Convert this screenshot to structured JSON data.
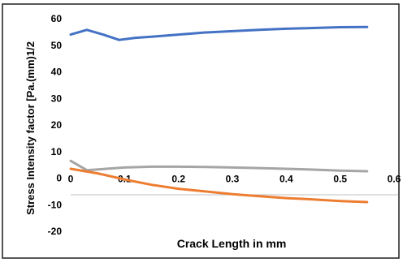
{
  "chart_data": {
    "type": "line",
    "xlabel": "Crack Length in mm",
    "ylabel": "Stress Intensity factor [Pa.(mm)1/2",
    "xlim": [
      0,
      0.6
    ],
    "ylim": [
      -20,
      60
    ],
    "x_ticks": [
      "0",
      "0.1",
      "0.2",
      "0.3",
      "0.4",
      "0.5",
      "0.6"
    ],
    "y_ticks": [
      "-20",
      "-10",
      "0",
      "10",
      "20",
      "30",
      "40",
      "50",
      "60"
    ],
    "grid": false,
    "legend": "none",
    "series": [
      {
        "color": "#4472c4",
        "x": [
          0,
          0.03,
          0.06,
          0.09,
          0.12,
          0.15,
          0.2,
          0.25,
          0.3,
          0.35,
          0.4,
          0.45,
          0.5,
          0.55
        ],
        "y": [
          54,
          55.8,
          54,
          52,
          52.8,
          53.2,
          54,
          54.8,
          55.3,
          55.8,
          56.2,
          56.5,
          56.8,
          56.9
        ]
      },
      {
        "color": "#a5a5a5",
        "x": [
          0,
          0.03,
          0.1,
          0.15,
          0.2,
          0.25,
          0.3,
          0.35,
          0.4,
          0.45,
          0.5,
          0.55
        ],
        "y": [
          6.5,
          3,
          4,
          4.3,
          4.3,
          4.2,
          4,
          3.8,
          3.5,
          3.2,
          2.8,
          2.6
        ]
      },
      {
        "color": "#ed7d31",
        "x": [
          0,
          0.05,
          0.1,
          0.15,
          0.2,
          0.25,
          0.3,
          0.35,
          0.4,
          0.45,
          0.5,
          0.55
        ],
        "y": [
          3.5,
          1.8,
          -0.5,
          -2.5,
          -4,
          -5,
          -6,
          -6.8,
          -7.5,
          -8,
          -8.6,
          -9
        ]
      }
    ]
  }
}
